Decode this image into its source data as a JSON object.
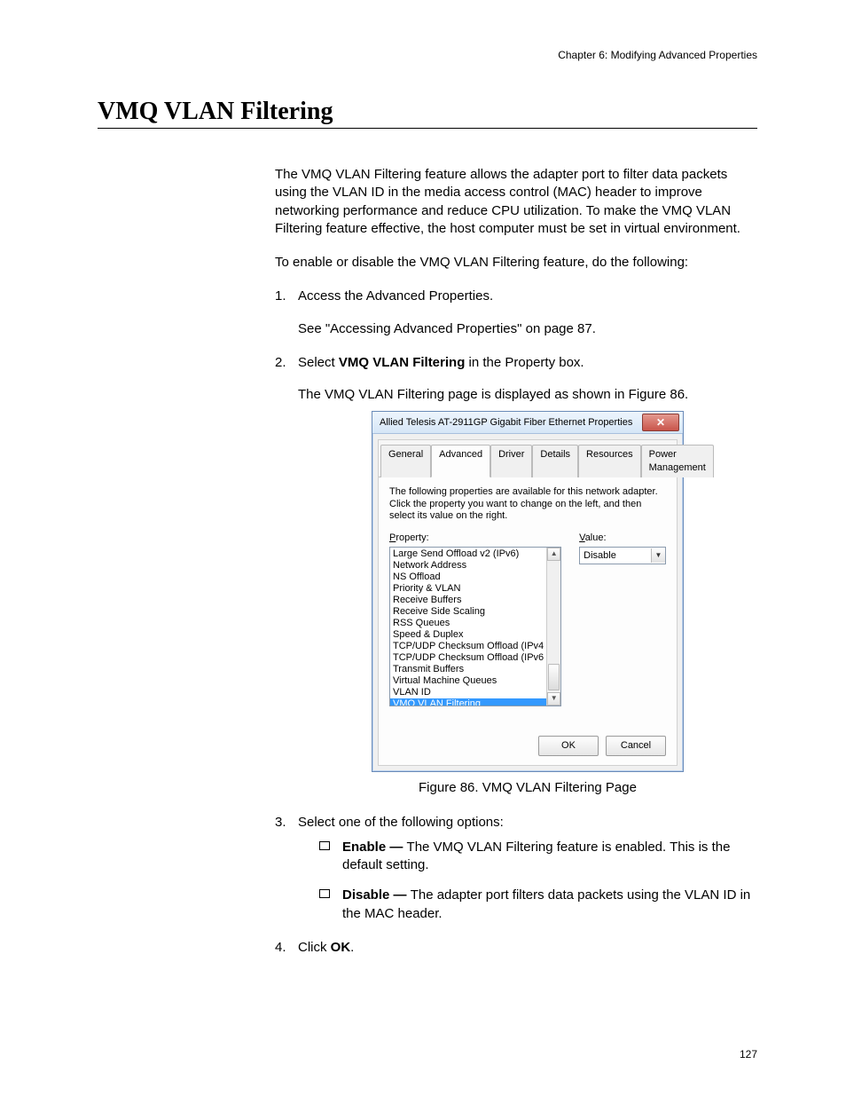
{
  "header": {
    "chapter": "Chapter 6: Modifying Advanced Properties"
  },
  "section": {
    "title": "VMQ VLAN Filtering"
  },
  "intro": {
    "p1": "The VMQ VLAN Filtering feature allows the adapter port to filter data packets using the VLAN ID in the media access control (MAC) header to improve networking performance and reduce CPU utilization. To make the VMQ VLAN Filtering feature effective, the host computer must be set in virtual environment.",
    "p2": "To enable or disable the VMQ VLAN Filtering feature, do the following:"
  },
  "steps": {
    "s1": {
      "num": "1.",
      "text": "Access the Advanced Properties.",
      "sub": "See \"Accessing Advanced Properties\" on page 87."
    },
    "s2": {
      "num": "2.",
      "pre": "Select ",
      "bold": "VMQ VLAN Filtering",
      "post": " in the Property box.",
      "sub": "The VMQ VLAN Filtering page is displayed as shown in Figure 86."
    },
    "s3": {
      "num": "3.",
      "text": "Select one of the following options:",
      "optA": {
        "label": "Enable — ",
        "text": "The VMQ VLAN Filtering feature is enabled. This is the default setting."
      },
      "optB": {
        "label": "Disable — ",
        "text": "The adapter port filters data packets using the VLAN ID in the MAC header."
      }
    },
    "s4": {
      "num": "4.",
      "pre": "Click ",
      "bold": "OK",
      "post": "."
    }
  },
  "figure": {
    "caption": "Figure 86. VMQ VLAN Filtering Page"
  },
  "dialog": {
    "title": "Allied Telesis AT-2911GP Gigabit Fiber Ethernet Properties",
    "tabs": {
      "general": "General",
      "advanced": "Advanced",
      "driver": "Driver",
      "details": "Details",
      "resources": "Resources",
      "power": "Power Management"
    },
    "instruction": "The following properties are available for this network adapter. Click the property you want to change on the left, and then select its value on the right.",
    "property_label": "Property:",
    "value_label": "Value:",
    "properties": {
      "p0": "Large Send Offload v2 (IPv6)",
      "p1": "Network Address",
      "p2": "NS Offload",
      "p3": "Priority & VLAN",
      "p4": "Receive Buffers",
      "p5": "Receive Side Scaling",
      "p6": "RSS Queues",
      "p7": "Speed & Duplex",
      "p8": "TCP/UDP Checksum Offload (IPv4",
      "p9": "TCP/UDP Checksum Offload (IPv6",
      "p10": "Transmit Buffers",
      "p11": "Virtual Machine Queues",
      "p12": "VLAN ID",
      "p13": "VMQ VLAN Filtering"
    },
    "value": "Disable",
    "buttons": {
      "ok": "OK",
      "cancel": "Cancel"
    }
  },
  "page_number": "127"
}
